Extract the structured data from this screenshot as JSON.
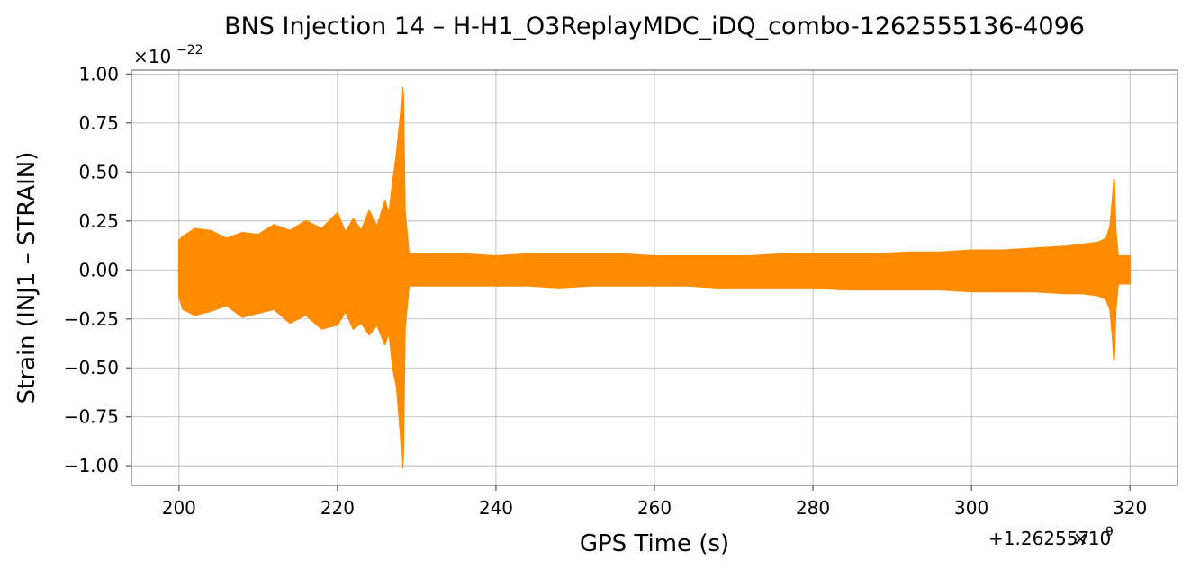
{
  "chart_data": {
    "type": "line",
    "title": "BNS Injection 14 – H-H1_O3ReplayMDC_iDQ_combo-1262555136-4096",
    "xlabel": "GPS Time (s)",
    "ylabel": "Strain (INJ1 – STRAIN)",
    "x_offset_label": "+1.262557",
    "x_offset_exp": "9",
    "y_scale_label": "×10",
    "y_scale_exp": "−22",
    "xlim": [
      194,
      326
    ],
    "ylim": [
      -1.1,
      1.02
    ],
    "x_ticks": [
      200,
      220,
      240,
      260,
      280,
      300,
      320
    ],
    "x_tick_labels": [
      "200",
      "220",
      "240",
      "260",
      "280",
      "300",
      "320"
    ],
    "y_ticks": [
      1.0,
      0.75,
      0.5,
      0.25,
      0.0,
      -0.25,
      -0.5,
      -0.75,
      -1.0
    ],
    "y_tick_labels": [
      "1.00",
      "0.75",
      "0.50",
      "0.25",
      "0.00",
      "−0.25",
      "−0.50",
      "−0.75",
      "−1.00"
    ],
    "grid": true,
    "series": [
      {
        "color": "#ff8c00",
        "x": [
          200,
          200.5,
          202,
          204,
          206,
          208,
          210,
          212,
          214,
          216,
          218,
          220,
          221,
          222,
          223,
          224,
          225,
          226,
          226.5,
          227,
          227.5,
          228,
          228.2,
          228.3,
          228.5,
          229,
          232,
          236,
          240,
          244,
          248,
          252,
          256,
          260,
          264,
          268,
          272,
          276,
          280,
          284,
          288,
          292,
          296,
          300,
          304,
          308,
          312,
          314,
          316,
          317,
          317.5,
          317.8,
          318,
          318.2,
          318.5,
          319,
          320
        ],
        "upper": [
          0.15,
          0.17,
          0.21,
          0.2,
          0.16,
          0.19,
          0.18,
          0.23,
          0.2,
          0.25,
          0.21,
          0.29,
          0.19,
          0.26,
          0.2,
          0.3,
          0.22,
          0.35,
          0.28,
          0.45,
          0.6,
          0.8,
          0.93,
          0.88,
          0.3,
          0.08,
          0.08,
          0.08,
          0.07,
          0.08,
          0.08,
          0.08,
          0.08,
          0.07,
          0.07,
          0.07,
          0.07,
          0.08,
          0.08,
          0.08,
          0.08,
          0.09,
          0.09,
          0.1,
          0.1,
          0.11,
          0.12,
          0.13,
          0.14,
          0.16,
          0.22,
          0.35,
          0.46,
          0.2,
          0.07,
          0.07,
          0.07
        ],
        "lower": [
          -0.13,
          -0.2,
          -0.23,
          -0.21,
          -0.18,
          -0.24,
          -0.22,
          -0.2,
          -0.27,
          -0.23,
          -0.3,
          -0.28,
          -0.21,
          -0.3,
          -0.27,
          -0.33,
          -0.28,
          -0.38,
          -0.31,
          -0.5,
          -0.6,
          -0.85,
          -1.01,
          -0.92,
          -0.3,
          -0.08,
          -0.08,
          -0.08,
          -0.08,
          -0.08,
          -0.09,
          -0.08,
          -0.08,
          -0.08,
          -0.08,
          -0.09,
          -0.09,
          -0.09,
          -0.09,
          -0.1,
          -0.1,
          -0.1,
          -0.1,
          -0.11,
          -0.11,
          -0.11,
          -0.12,
          -0.12,
          -0.13,
          -0.15,
          -0.2,
          -0.33,
          -0.46,
          -0.2,
          -0.07,
          -0.07,
          -0.07
        ]
      }
    ]
  }
}
